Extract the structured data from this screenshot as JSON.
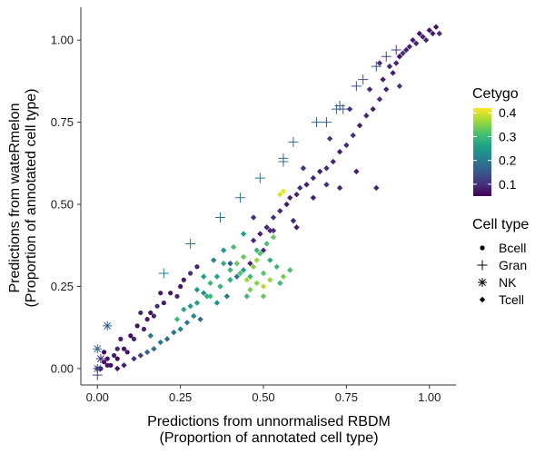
{
  "chart_data": {
    "type": "scatter",
    "xlabel_lines": [
      "Predictions from unnormalised RBDM",
      "(Proportion of annotated cell type)"
    ],
    "ylabel_lines": [
      "Predictions from wateRmelon",
      "(Proportion of annotated cell type)"
    ],
    "xlim": [
      -0.05,
      1.08
    ],
    "ylim": [
      -0.05,
      1.1
    ],
    "x_ticks": [
      0.0,
      0.25,
      0.5,
      0.75,
      1.0
    ],
    "x_tick_labels": [
      "0.00",
      "0.25",
      "0.50",
      "0.75",
      "1.00"
    ],
    "y_ticks": [
      0.0,
      0.25,
      0.5,
      0.75,
      1.0
    ],
    "y_tick_labels": [
      "0.00",
      "0.25",
      "0.50",
      "0.75",
      "1.00"
    ],
    "grid": false,
    "color_legend": {
      "title": "Cetygo",
      "ticks": [
        0.1,
        0.2,
        0.3,
        0.4
      ],
      "tick_labels": [
        "0.1",
        "0.2",
        "0.3",
        "0.4"
      ],
      "range": [
        0.05,
        0.42
      ],
      "palette": [
        "#440154",
        "#46327e",
        "#365c8d",
        "#277f8e",
        "#1fa187",
        "#4ac16d",
        "#a0da39",
        "#fde725"
      ]
    },
    "shape_legend": {
      "title": "Cell type",
      "placement": "right",
      "entries": [
        {
          "label": "Bcell",
          "shape": "circle"
        },
        {
          "label": "Gran",
          "shape": "plus"
        },
        {
          "label": "NK",
          "shape": "asterisk"
        },
        {
          "label": "Tcell",
          "shape": "diamond"
        }
      ]
    },
    "series": [
      {
        "name": "Bcell",
        "shape": "circle",
        "points": [
          [
            0.0,
            0.0,
            0.07
          ],
          [
            0.01,
            0.0,
            0.08
          ],
          [
            0.02,
            0.02,
            0.06
          ],
          [
            0.03,
            0.03,
            0.07
          ],
          [
            0.04,
            0.01,
            0.06
          ],
          [
            0.05,
            0.04,
            0.08
          ],
          [
            0.06,
            0.06,
            0.09
          ],
          [
            0.08,
            0.06,
            0.07
          ],
          [
            0.07,
            0.09,
            0.08
          ],
          [
            0.1,
            0.1,
            0.06
          ],
          [
            0.11,
            0.09,
            0.09
          ],
          [
            0.12,
            0.13,
            0.07
          ],
          [
            0.15,
            0.15,
            0.08
          ],
          [
            0.16,
            0.17,
            0.07
          ],
          [
            0.17,
            0.16,
            0.09
          ],
          [
            0.18,
            0.19,
            0.1
          ],
          [
            0.2,
            0.2,
            0.08
          ],
          [
            0.22,
            0.23,
            0.07
          ],
          [
            0.24,
            0.22,
            0.09
          ],
          [
            0.26,
            0.27,
            0.08
          ],
          [
            0.28,
            0.29,
            0.1
          ],
          [
            0.3,
            0.31,
            0.09
          ],
          [
            0.02,
            0.05,
            0.06
          ],
          [
            0.09,
            0.05,
            0.07
          ],
          [
            0.14,
            0.12,
            0.08
          ],
          [
            0.03,
            0.01,
            0.07
          ],
          [
            0.06,
            0.03,
            0.06
          ],
          [
            0.13,
            0.17,
            0.09
          ],
          [
            0.19,
            0.23,
            0.08
          ],
          [
            0.25,
            0.25,
            0.07
          ]
        ]
      },
      {
        "name": "Gran",
        "shape": "plus",
        "points": [
          [
            0.0,
            -0.02,
            0.12
          ],
          [
            0.2,
            0.29,
            0.2
          ],
          [
            0.28,
            0.38,
            0.2
          ],
          [
            0.37,
            0.46,
            0.2
          ],
          [
            0.43,
            0.52,
            0.19
          ],
          [
            0.49,
            0.58,
            0.19
          ],
          [
            0.56,
            0.64,
            0.18
          ],
          [
            0.59,
            0.69,
            0.17
          ],
          [
            0.66,
            0.75,
            0.17
          ],
          [
            0.69,
            0.75,
            0.16
          ],
          [
            0.72,
            0.79,
            0.16
          ],
          [
            0.73,
            0.8,
            0.15
          ],
          [
            0.74,
            0.79,
            0.15
          ],
          [
            0.78,
            0.86,
            0.14
          ],
          [
            0.8,
            0.88,
            0.14
          ],
          [
            0.84,
            0.92,
            0.13
          ],
          [
            0.87,
            0.95,
            0.12
          ],
          [
            0.9,
            0.97,
            0.11
          ],
          [
            0.56,
            0.63,
            0.18
          ]
        ]
      },
      {
        "name": "NK",
        "shape": "asterisk",
        "points": [
          [
            0.0,
            0.06,
            0.17
          ],
          [
            0.03,
            0.13,
            0.16
          ],
          [
            0.0,
            0.0,
            0.14
          ],
          [
            0.01,
            0.03,
            0.1
          ]
        ]
      },
      {
        "name": "Tcell",
        "shape": "diamond",
        "points": [
          [
            1.0,
            1.03,
            0.07
          ],
          [
            1.01,
            1.02,
            0.08
          ],
          [
            1.02,
            1.04,
            0.07
          ],
          [
            0.99,
            1.0,
            0.09
          ],
          [
            0.98,
            1.01,
            0.08
          ],
          [
            1.03,
            1.02,
            0.1
          ],
          [
            0.97,
            1.02,
            0.07
          ],
          [
            0.96,
            0.99,
            0.09
          ],
          [
            0.95,
            1.0,
            0.08
          ],
          [
            0.94,
            0.98,
            0.09
          ],
          [
            0.93,
            0.97,
            0.08
          ],
          [
            0.92,
            0.96,
            0.1
          ],
          [
            0.91,
            0.95,
            0.07
          ],
          [
            0.9,
            0.93,
            0.09
          ],
          [
            0.89,
            0.9,
            0.08
          ],
          [
            0.87,
            0.85,
            0.09
          ],
          [
            0.85,
            0.82,
            0.1
          ],
          [
            0.83,
            0.79,
            0.08
          ],
          [
            0.81,
            0.77,
            0.09
          ],
          [
            0.79,
            0.74,
            0.08
          ],
          [
            0.77,
            0.71,
            0.1
          ],
          [
            0.75,
            0.68,
            0.09
          ],
          [
            0.73,
            0.66,
            0.08
          ],
          [
            0.71,
            0.63,
            0.09
          ],
          [
            0.69,
            0.61,
            0.1
          ],
          [
            0.67,
            0.6,
            0.08
          ],
          [
            0.65,
            0.58,
            0.09
          ],
          [
            0.63,
            0.56,
            0.08
          ],
          [
            0.61,
            0.55,
            0.1
          ],
          [
            0.6,
            0.53,
            0.09
          ],
          [
            0.57,
            0.5,
            0.08
          ],
          [
            0.55,
            0.48,
            0.09
          ],
          [
            0.53,
            0.46,
            0.1
          ],
          [
            0.51,
            0.43,
            0.09
          ],
          [
            0.49,
            0.41,
            0.08
          ],
          [
            0.47,
            0.39,
            0.09
          ],
          [
            0.5,
            0.36,
            0.1
          ],
          [
            0.52,
            0.42,
            0.09
          ],
          [
            0.58,
            0.52,
            0.08
          ],
          [
            0.62,
            0.61,
            0.1
          ],
          [
            0.7,
            0.7,
            0.11
          ],
          [
            0.76,
            0.79,
            0.1
          ],
          [
            0.82,
            0.85,
            0.09
          ],
          [
            0.86,
            0.88,
            0.08
          ],
          [
            0.88,
            0.92,
            0.09
          ],
          [
            0.85,
            0.93,
            0.1
          ],
          [
            0.91,
            0.86,
            0.11
          ],
          [
            0.84,
            0.55,
            0.09
          ],
          [
            0.78,
            0.6,
            0.08
          ],
          [
            0.73,
            0.55,
            0.09
          ],
          [
            0.69,
            0.56,
            0.1
          ],
          [
            0.65,
            0.52,
            0.08
          ],
          [
            0.59,
            0.45,
            0.09
          ],
          [
            0.53,
            0.42,
            0.1
          ],
          [
            0.46,
            0.32,
            0.09
          ],
          [
            0.4,
            0.32,
            0.15
          ],
          [
            0.42,
            0.28,
            0.2
          ],
          [
            0.44,
            0.3,
            0.25
          ],
          [
            0.46,
            0.28,
            0.3
          ],
          [
            0.48,
            0.26,
            0.35
          ],
          [
            0.5,
            0.29,
            0.32
          ],
          [
            0.52,
            0.33,
            0.28
          ],
          [
            0.54,
            0.31,
            0.3
          ],
          [
            0.56,
            0.28,
            0.34
          ],
          [
            0.58,
            0.3,
            0.31
          ],
          [
            0.44,
            0.34,
            0.33
          ],
          [
            0.48,
            0.33,
            0.36
          ],
          [
            0.5,
            0.25,
            0.38
          ],
          [
            0.46,
            0.24,
            0.34
          ],
          [
            0.52,
            0.27,
            0.36
          ],
          [
            0.55,
            0.26,
            0.3
          ],
          [
            0.42,
            0.32,
            0.33
          ],
          [
            0.4,
            0.3,
            0.3
          ],
          [
            0.38,
            0.32,
            0.28
          ],
          [
            0.36,
            0.28,
            0.27
          ],
          [
            0.34,
            0.26,
            0.3
          ],
          [
            0.32,
            0.28,
            0.26
          ],
          [
            0.48,
            0.36,
            0.29
          ],
          [
            0.51,
            0.38,
            0.31
          ],
          [
            0.53,
            0.4,
            0.33
          ],
          [
            0.55,
            0.53,
            0.4
          ],
          [
            0.56,
            0.54,
            0.41
          ],
          [
            0.47,
            0.46,
            0.1
          ],
          [
            0.6,
            0.43,
            0.08
          ],
          [
            0.39,
            0.22,
            0.2
          ],
          [
            0.36,
            0.2,
            0.24
          ],
          [
            0.33,
            0.22,
            0.28
          ],
          [
            0.3,
            0.2,
            0.26
          ],
          [
            0.29,
            0.16,
            0.22
          ],
          [
            0.27,
            0.14,
            0.2
          ],
          [
            0.25,
            0.12,
            0.22
          ],
          [
            0.23,
            0.11,
            0.2
          ],
          [
            0.21,
            0.09,
            0.18
          ],
          [
            0.19,
            0.08,
            0.2
          ],
          [
            0.17,
            0.06,
            0.18
          ],
          [
            0.15,
            0.05,
            0.16
          ],
          [
            0.13,
            0.04,
            0.12
          ],
          [
            0.11,
            0.03,
            0.1
          ],
          [
            0.08,
            0.01,
            0.08
          ],
          [
            0.06,
            0.0,
            0.07
          ],
          [
            0.24,
            0.15,
            0.3
          ],
          [
            0.26,
            0.18,
            0.27
          ],
          [
            0.28,
            0.19,
            0.26
          ],
          [
            0.3,
            0.24,
            0.25
          ],
          [
            0.32,
            0.23,
            0.24
          ],
          [
            0.34,
            0.22,
            0.3
          ],
          [
            0.37,
            0.25,
            0.29
          ],
          [
            0.4,
            0.27,
            0.28
          ],
          [
            0.43,
            0.29,
            0.32
          ],
          [
            0.45,
            0.27,
            0.37
          ],
          [
            0.47,
            0.31,
            0.35
          ],
          [
            0.49,
            0.35,
            0.32
          ],
          [
            0.45,
            0.22,
            0.3
          ],
          [
            0.5,
            0.22,
            0.33
          ],
          [
            0.41,
            0.37,
            0.31
          ],
          [
            0.35,
            0.33,
            0.22
          ],
          [
            0.38,
            0.36,
            0.24
          ],
          [
            0.44,
            0.41,
            0.26
          ],
          [
            0.31,
            0.15,
            0.18
          ],
          [
            0.16,
            0.1,
            0.2
          ]
        ]
      }
    ]
  }
}
